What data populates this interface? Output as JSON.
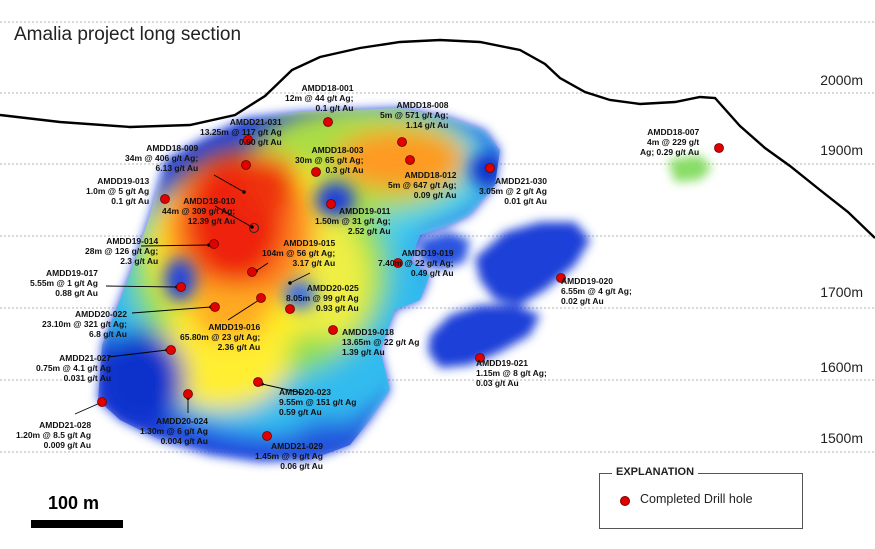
{
  "title": "Amalia project long section",
  "elevations": [
    "2000m",
    "1900m",
    "1700m",
    "1600m",
    "1500m"
  ],
  "legend": {
    "heading": "EXPLANATION",
    "item": "Completed Drill hole"
  },
  "scale": {
    "label": "100 m"
  },
  "colors": {
    "drill_hole": "#e10000",
    "topography": "#000000",
    "level_lines": "#888888"
  },
  "drill_holes": [
    {
      "id": "AMDD18-001",
      "result": [
        "12m @ 44 g/t Ag;",
        "0.1 g/t Au"
      ]
    },
    {
      "id": "AMDD18-008",
      "result": [
        "5m @ 571 g/t Ag;",
        "1.14 g/t Au"
      ]
    },
    {
      "id": "AMDD21-031",
      "result": [
        "13.25m @ 117 g/t Ag",
        "0.90 g/t Au"
      ]
    },
    {
      "id": "AMDD18-009",
      "result": [
        "34m @ 406 g/t Ag;",
        "6.13 g/t Au"
      ]
    },
    {
      "id": "AMDD18-003",
      "result": [
        "30m @ 65 g/t Ag;",
        "0.3 g/t Au"
      ]
    },
    {
      "id": "AMDD18-012",
      "result": [
        "5m @ 647 g/t Ag;",
        "0.09 g/t Au"
      ]
    },
    {
      "id": "AMDD21-030",
      "result": [
        "3.05m @ 2 g/t Ag",
        "0.01 g/t Au"
      ]
    },
    {
      "id": "AMDD18-007",
      "result": [
        "4m @ 229 g/t",
        "Ag; 0.29 g/t Au"
      ]
    },
    {
      "id": "AMDD19-013",
      "result": [
        "1.0m @ 5 g/t Ag",
        "0.1 g/t Au"
      ]
    },
    {
      "id": "AMDD18-010",
      "result": [
        "44m @ 309 g/t Ag;",
        "12.39 g/t Au"
      ]
    },
    {
      "id": "AMDD19-011",
      "result": [
        "1.50m @ 31 g/t Ag;",
        "2.52 g/t Au"
      ]
    },
    {
      "id": "AMDD19-014",
      "result": [
        "28m @ 126 g/t Ag;",
        "2.3 g/t Au"
      ]
    },
    {
      "id": "AMDD19-015",
      "result": [
        "104m @ 56 g/t Ag;",
        "3.17 g/t Au"
      ]
    },
    {
      "id": "AMDD19-019",
      "result": [
        "7.40m @ 22 g/t Ag;",
        "0.49 g/t Au"
      ]
    },
    {
      "id": "AMDD19-017",
      "result": [
        "5.55m @ 1 g/t Ag",
        "0.88 g/t Au"
      ]
    },
    {
      "id": "AMDD20-025",
      "result": [
        "8.05m @ 99 g/t Ag",
        "0.93 g/t Au"
      ]
    },
    {
      "id": "AMDD19-020",
      "result": [
        "6.55m @ 4 g/t Ag;",
        "0.02 g/t Au"
      ]
    },
    {
      "id": "AMDD20-022",
      "result": [
        "23.10m @ 321 g/t Ag;",
        "6.8 g/t Au"
      ]
    },
    {
      "id": "AMDD19-016",
      "result": [
        "65.80m @ 23 g/t Ag;",
        "2.36 g/t Au"
      ]
    },
    {
      "id": "AMDD19-018",
      "result": [
        "13.65m @ 22 g/t Ag",
        "1.39 g/t Au"
      ]
    },
    {
      "id": "AMDD21-027",
      "result": [
        "0.75m @ 4.1 g/t Ag",
        "0.031 g/t Au"
      ]
    },
    {
      "id": "AMDD19-021",
      "result": [
        "1.15m @ 8 g/t Ag;",
        "0.03 g/t Au"
      ]
    },
    {
      "id": "AMDD20-023",
      "result": [
        "9.55m @ 151 g/t Ag",
        "0.59 g/t Au"
      ]
    },
    {
      "id": "AMDD21-028",
      "result": [
        "1.20m @ 8.5 g/t Ag",
        "0.009 g/t Au"
      ]
    },
    {
      "id": "AMDD20-024",
      "result": [
        "1.30m @ 6 g/t Ag",
        "0.004 g/t Au"
      ]
    },
    {
      "id": "AMDD21-029",
      "result": [
        "1.45m @ 9 g/t Ag",
        "0.06 g/t Au"
      ]
    }
  ]
}
